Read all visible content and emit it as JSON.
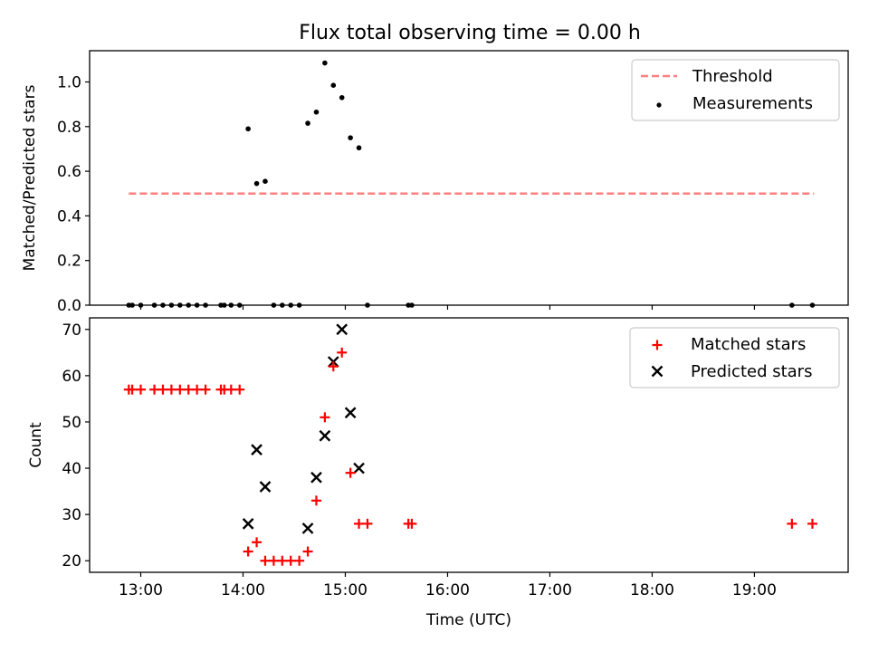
{
  "chart_data": [
    {
      "type": "scatter",
      "title": "Flux total observing time = 0.00 h",
      "xlabel": "",
      "ylabel": "Matched/Predicted stars",
      "xlim": [
        "12:30",
        "19:55"
      ],
      "ylim": [
        0,
        1.14
      ],
      "yticks": [
        "0.0",
        "0.2",
        "0.4",
        "0.6",
        "0.8",
        "1.0"
      ],
      "legend_position": "top-right",
      "colors": {
        "threshold": "#ff7f7f",
        "measurements": "#000000"
      },
      "threshold": {
        "name": "Threshold",
        "value": 0.5,
        "x_range": [
          "12:53",
          "19:35"
        ]
      },
      "series": [
        {
          "name": "Measurements",
          "points": [
            [
              "12:53",
              0.0
            ],
            [
              "12:55",
              0.0
            ],
            [
              "13:00",
              0.0
            ],
            [
              "13:08",
              0.0
            ],
            [
              "13:13",
              0.0
            ],
            [
              "13:18",
              0.0
            ],
            [
              "13:23",
              0.0
            ],
            [
              "13:28",
              0.0
            ],
            [
              "13:33",
              0.0
            ],
            [
              "13:38",
              0.0
            ],
            [
              "13:47",
              0.0
            ],
            [
              "13:49",
              0.0
            ],
            [
              "13:53",
              0.0
            ],
            [
              "13:58",
              0.0
            ],
            [
              "14:03",
              0.79
            ],
            [
              "14:08",
              0.545
            ],
            [
              "14:13",
              0.555
            ],
            [
              "14:18",
              0.0
            ],
            [
              "14:23",
              0.0
            ],
            [
              "14:28",
              0.0
            ],
            [
              "14:33",
              0.0
            ],
            [
              "14:38",
              0.815
            ],
            [
              "14:43",
              0.865
            ],
            [
              "14:48",
              1.085
            ],
            [
              "14:53",
              0.985
            ],
            [
              "14:58",
              0.93
            ],
            [
              "15:03",
              0.75
            ],
            [
              "15:08",
              0.705
            ],
            [
              "15:13",
              0.0
            ],
            [
              "15:37",
              0.0
            ],
            [
              "15:39",
              0.0
            ],
            [
              "19:22",
              0.0
            ],
            [
              "19:34",
              0.0
            ]
          ]
        }
      ]
    },
    {
      "type": "scatter",
      "title": "",
      "xlabel": "Time (UTC)",
      "ylabel": "Count",
      "xlim": [
        "12:30",
        "19:55"
      ],
      "ylim": [
        17.5,
        72.5
      ],
      "xticks": [
        "13:00",
        "14:00",
        "15:00",
        "16:00",
        "17:00",
        "18:00",
        "19:00"
      ],
      "yticks": [
        "20",
        "30",
        "40",
        "50",
        "60",
        "70"
      ],
      "legend_position": "top-right",
      "colors": {
        "matched": "#ff0000",
        "predicted": "#000000"
      },
      "series": [
        {
          "name": "Matched stars",
          "points": [
            [
              "12:53",
              57
            ],
            [
              "12:55",
              57
            ],
            [
              "13:00",
              57
            ],
            [
              "13:08",
              57
            ],
            [
              "13:13",
              57
            ],
            [
              "13:18",
              57
            ],
            [
              "13:23",
              57
            ],
            [
              "13:28",
              57
            ],
            [
              "13:33",
              57
            ],
            [
              "13:38",
              57
            ],
            [
              "13:47",
              57
            ],
            [
              "13:49",
              57
            ],
            [
              "13:53",
              57
            ],
            [
              "13:58",
              57
            ],
            [
              "14:03",
              22
            ],
            [
              "14:08",
              24
            ],
            [
              "14:13",
              20
            ],
            [
              "14:18",
              20
            ],
            [
              "14:23",
              20
            ],
            [
              "14:28",
              20
            ],
            [
              "14:33",
              20
            ],
            [
              "14:38",
              22
            ],
            [
              "14:43",
              33
            ],
            [
              "14:48",
              51
            ],
            [
              "14:53",
              62
            ],
            [
              "14:58",
              65
            ],
            [
              "15:03",
              39
            ],
            [
              "15:08",
              28
            ],
            [
              "15:13",
              28
            ],
            [
              "15:37",
              28
            ],
            [
              "15:39",
              28
            ],
            [
              "19:22",
              28
            ],
            [
              "19:34",
              28
            ]
          ]
        },
        {
          "name": "Predicted stars",
          "points": [
            [
              "14:03",
              28
            ],
            [
              "14:08",
              44
            ],
            [
              "14:13",
              36
            ],
            [
              "14:38",
              27
            ],
            [
              "14:43",
              38
            ],
            [
              "14:48",
              47
            ],
            [
              "14:53",
              63
            ],
            [
              "14:58",
              70
            ],
            [
              "15:03",
              52
            ],
            [
              "15:08",
              40
            ]
          ]
        }
      ]
    }
  ]
}
